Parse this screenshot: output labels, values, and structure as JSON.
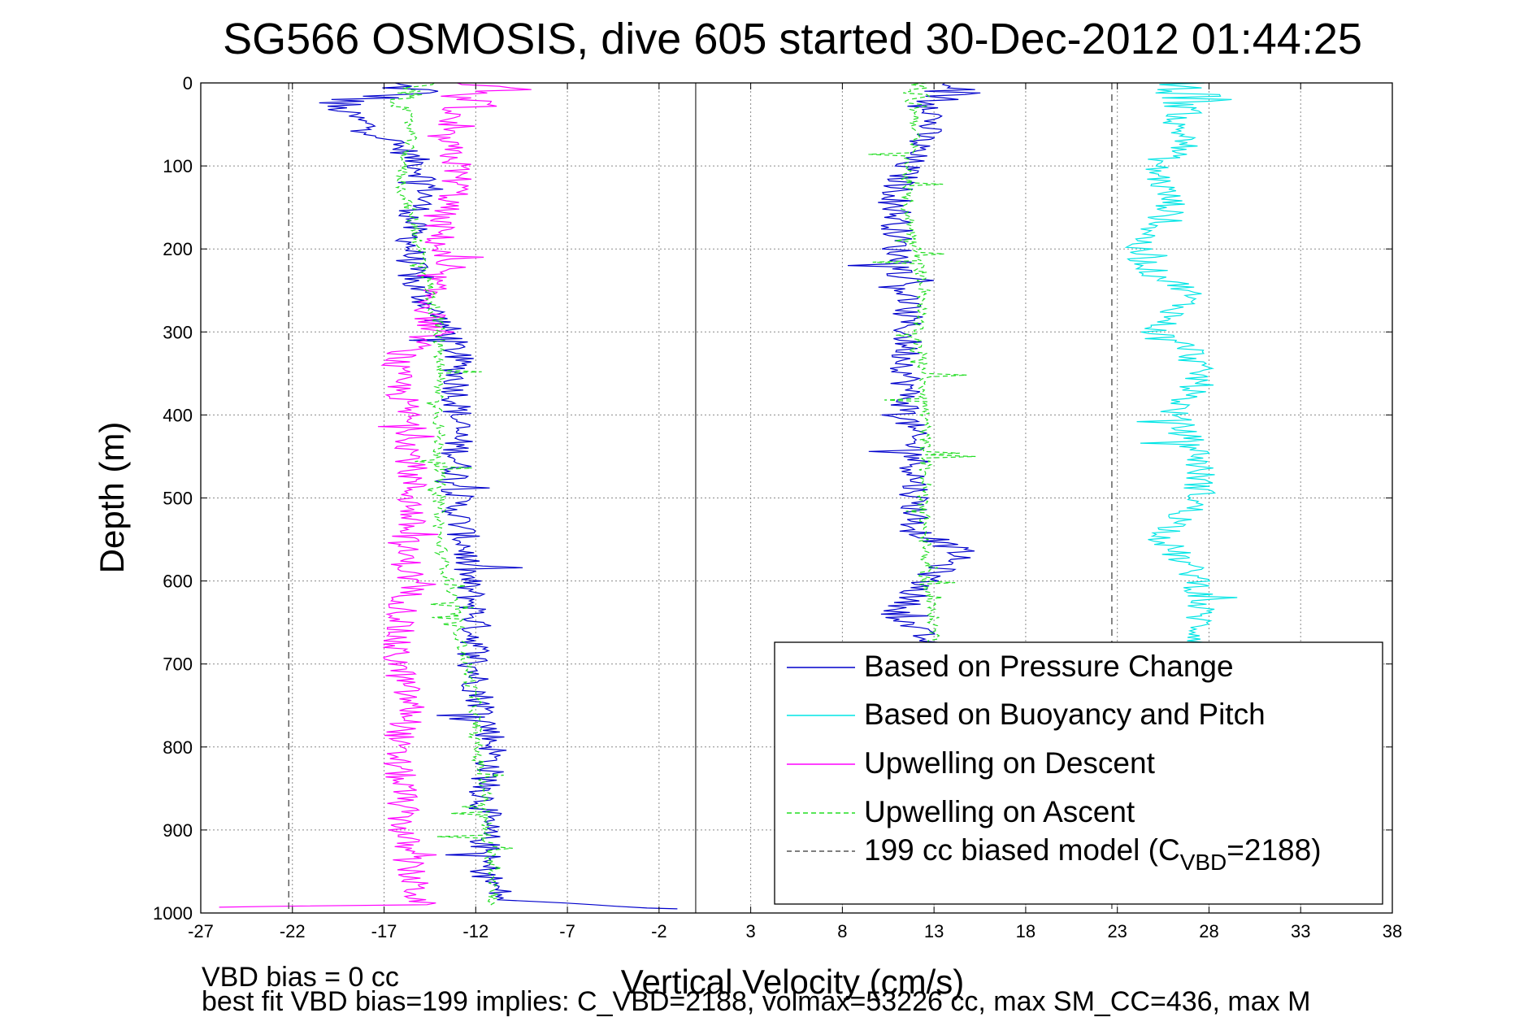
{
  "chart_data": {
    "type": "line",
    "title": "SG566 OSMOSIS, dive 605 started 30-Dec-2012 01:44:25",
    "xlabel": "Vertical Velocity (cm/s)",
    "ylabel": "Depth (m)",
    "xlim": [
      -27,
      38
    ],
    "ylim": [
      0,
      1000
    ],
    "y_reversed": true,
    "grid": true,
    "legend_position": "bottom-right",
    "x_ticks": [
      "-27",
      "-22",
      "-17",
      "-12",
      "-7",
      "-2",
      "3",
      "8",
      "13",
      "18",
      "23",
      "28",
      "33",
      "38"
    ],
    "y_ticks": [
      "0",
      "100",
      "200",
      "300",
      "400",
      "500",
      "600",
      "700",
      "800",
      "900",
      "1000"
    ],
    "annotations": [
      "VBD bias = 0 cc",
      "best fit VBD bias=199 implies: C_VBD=2188, volmax=53226 cc, max SM_CC=436, max M"
    ],
    "series": [
      {
        "name": "Based on Pressure Change",
        "color": "#0000cc",
        "style": "solid",
        "segments": [
          {
            "depth": [
              0,
              10,
              25,
              50,
              80,
              100,
              130,
              160,
              200,
              240,
              270,
              300,
              330,
              360,
              400,
              440,
              480,
              520,
              560,
              600,
              640,
              680,
              720,
              760,
              800,
              850,
              900,
              950,
              985,
              995
            ],
            "values": [
              -17,
              -15,
              -20,
              -18,
              -16,
              -15,
              -14.5,
              -15.5,
              -15.5,
              -15.5,
              -14.5,
              -13.5,
              -13,
              -13,
              -13,
              -13,
              -13,
              -13,
              -12.5,
              -12.5,
              -12,
              -12,
              -12,
              -11.5,
              -11,
              -11.5,
              -11.5,
              -11.5,
              -10.5,
              -1
            ]
          },
          {
            "depth": [
              0,
              10,
              40,
              80,
              100,
              130,
              160,
              200,
              250,
              300,
              330,
              360,
              400,
              450,
              500,
              540,
              565,
              600,
              640,
              680
            ],
            "values": [
              12,
              14,
              13,
              12,
              11.5,
              11,
              11,
              11,
              11.5,
              11.5,
              11.5,
              11.5,
              11.5,
              12,
              12,
              12,
              14.5,
              12.5,
              11,
              13
            ]
          }
        ]
      },
      {
        "name": "Based on Buoyancy and Pitch",
        "color": "#00e5e5",
        "style": "solid",
        "segments": [
          {
            "depth": [
              0,
              20,
              50,
              70,
              100,
              150,
              200,
              230,
              250,
              270,
              300,
              320,
              360,
              400,
              450,
              500,
              550,
              600,
              650,
              680
            ],
            "values": [
              26,
              27.5,
              26,
              27,
              25,
              26,
              24,
              25,
              27,
              26.5,
              25,
              27,
              27.5,
              26,
              27.5,
              27.5,
              25.5,
              27.5,
              27.5,
              27.5
            ]
          }
        ]
      },
      {
        "name": "Upwelling on Descent",
        "color": "#ff00ff",
        "style": "solid",
        "segments": [
          {
            "depth": [
              0,
              5,
              20,
              60,
              100,
              130,
              160,
              200,
              250,
              300,
              340,
              380,
              420,
              460,
              520,
              560,
              600,
              640,
              680,
              720,
              760,
              800,
              850,
              900,
              960,
              990,
              993
            ],
            "values": [
              -13,
              -10,
              -13,
              -14,
              -13,
              -13,
              -14,
              -14,
              -14.5,
              -14.5,
              -16.5,
              -16,
              -15.5,
              -15.5,
              -15.5,
              -16,
              -15.5,
              -16,
              -16.5,
              -16,
              -15.5,
              -16.5,
              -16,
              -16,
              -15.5,
              -15,
              -26
            ]
          }
        ]
      },
      {
        "name": "Upwelling on Ascent",
        "color": "#22dd22",
        "style": "dashed",
        "segments": [
          {
            "depth": [
              0,
              20,
              60,
              100,
              130,
              160,
              200,
              250,
              300,
              340,
              400,
              450,
              500,
              550,
              600,
              650,
              700,
              750,
              800,
              850,
              900,
              950,
              990
            ],
            "values": [
              -15,
              -16,
              -15.5,
              -16,
              -16,
              -15.5,
              -15,
              -14.5,
              -14,
              -14,
              -14,
              -14,
              -14,
              -14,
              -13.5,
              -13,
              -12.5,
              -12,
              -12,
              -11.5,
              -11.5,
              -11,
              -11
            ]
          },
          {
            "depth": [
              0,
              20,
              60,
              100,
              150,
              200,
              250,
              300,
              350,
              400,
              450,
              500,
              550,
              600,
              650,
              680
            ],
            "values": [
              12,
              12,
              12,
              11.5,
              11.5,
              12,
              12.5,
              12,
              12.5,
              12.5,
              12.5,
              12.5,
              12.5,
              12.5,
              13,
              13
            ]
          }
        ]
      },
      {
        "name": "199 cc biased model (C_VBD=2188)",
        "color": "#555555",
        "style": "dashed",
        "segments": [
          {
            "depth": [
              0,
              1000
            ],
            "values": [
              -22.2,
              -22.2
            ]
          },
          {
            "depth": [
              0,
              1000
            ],
            "values": [
              22.7,
              22.7
            ]
          }
        ]
      }
    ]
  },
  "legend": {
    "entries": [
      {
        "label": "Based on Pressure Change",
        "color": "#0000cc",
        "style": "solid"
      },
      {
        "label": "Based on Buoyancy and Pitch",
        "color": "#00e5e5",
        "style": "solid"
      },
      {
        "label": "Upwelling on Descent",
        "color": "#ff00ff",
        "style": "solid"
      },
      {
        "label": "Upwelling on Ascent",
        "color": "#22dd22",
        "style": "dashed"
      },
      {
        "label_main": "199 cc biased model (C",
        "label_sub": "VBD",
        "label_tail": "=2188)",
        "color": "#555555",
        "style": "dashed"
      }
    ]
  }
}
